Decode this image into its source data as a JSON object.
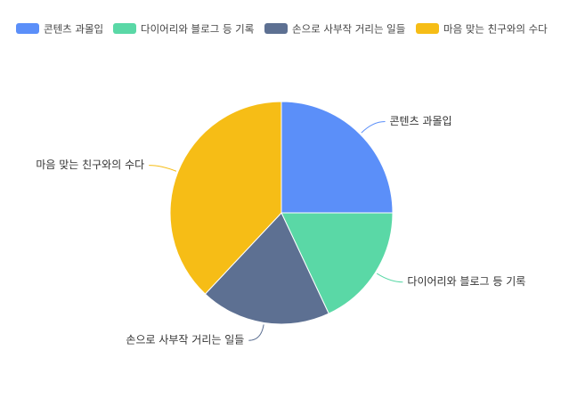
{
  "chart_data": {
    "type": "pie",
    "categories": [
      "콘텐츠 과몰입",
      "다이어리와 블로그 등 기록",
      "손으로 사부작 거리는 일들",
      "마음 맞는 친구와의 수다"
    ],
    "values": [
      25,
      18,
      19,
      38
    ],
    "colors": [
      "#5B8FF9",
      "#5AD8A6",
      "#5D7092",
      "#F6BD16"
    ],
    "legend": "top"
  }
}
